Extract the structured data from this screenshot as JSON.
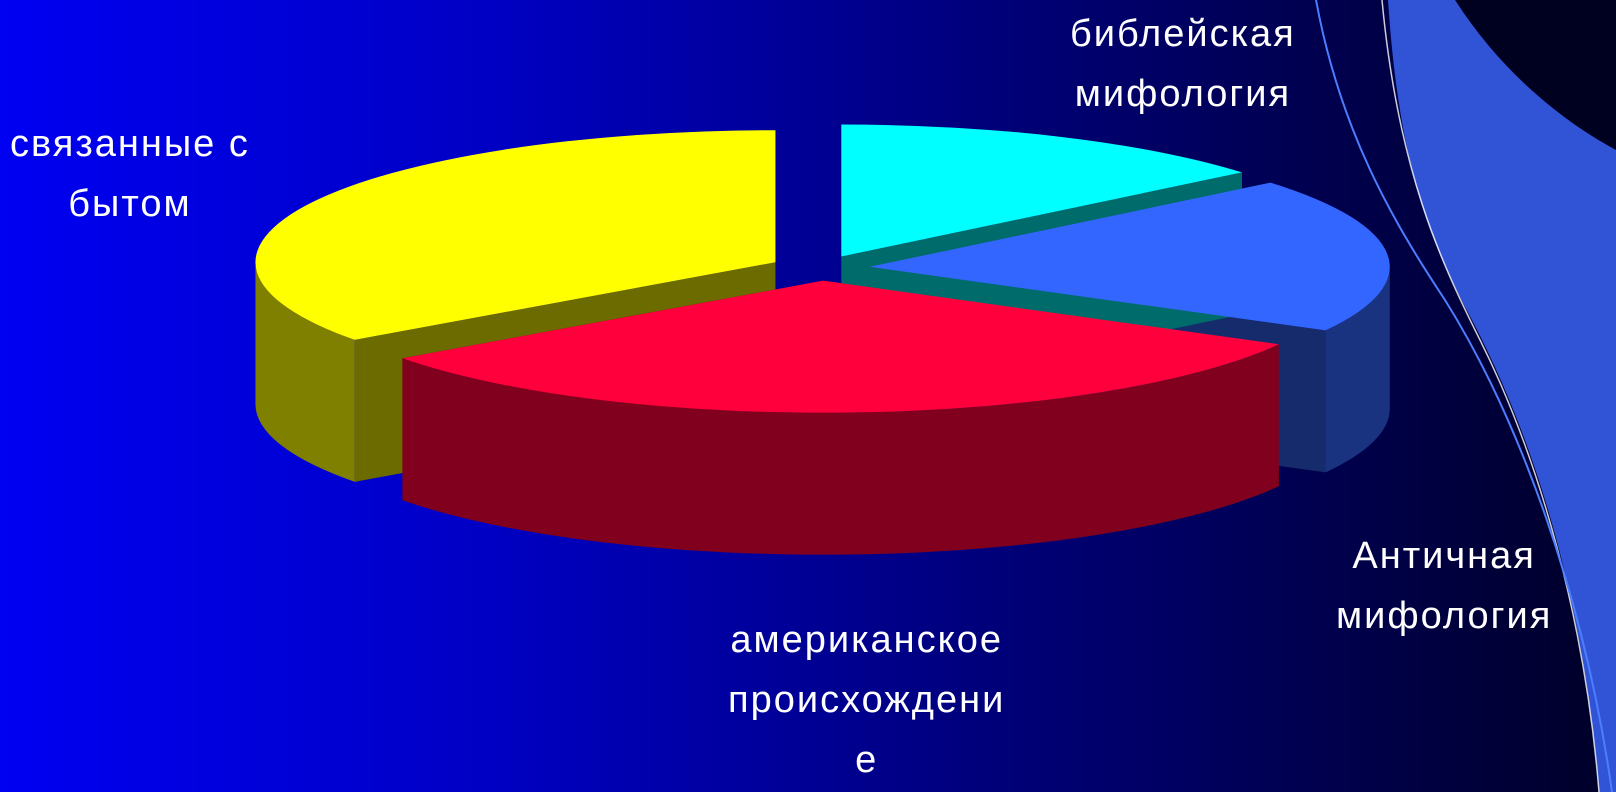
{
  "colors": {
    "bytom": "#ffff00",
    "amerikanskoe": "#ff003c",
    "antichnaya": "#3366ff",
    "bibleiskaya": "#00ffff"
  },
  "labels": {
    "bytom": [
      "связанные с",
      "бытом"
    ],
    "amerikanskoe": [
      "американское",
      "происхождени",
      "е"
    ],
    "antichnaya": [
      "Античная",
      "мифология"
    ],
    "bibleiskaya": [
      "библейская",
      "мифология"
    ]
  },
  "chart_data": {
    "type": "pie",
    "title": "",
    "categories": [
      "библейская мифология",
      "Античная мифология",
      "американское происхождение",
      "связанные с бытом"
    ],
    "values": [
      14,
      19,
      32,
      35
    ],
    "unit": "%",
    "three_d": true,
    "exploded": true,
    "legend": "none"
  }
}
